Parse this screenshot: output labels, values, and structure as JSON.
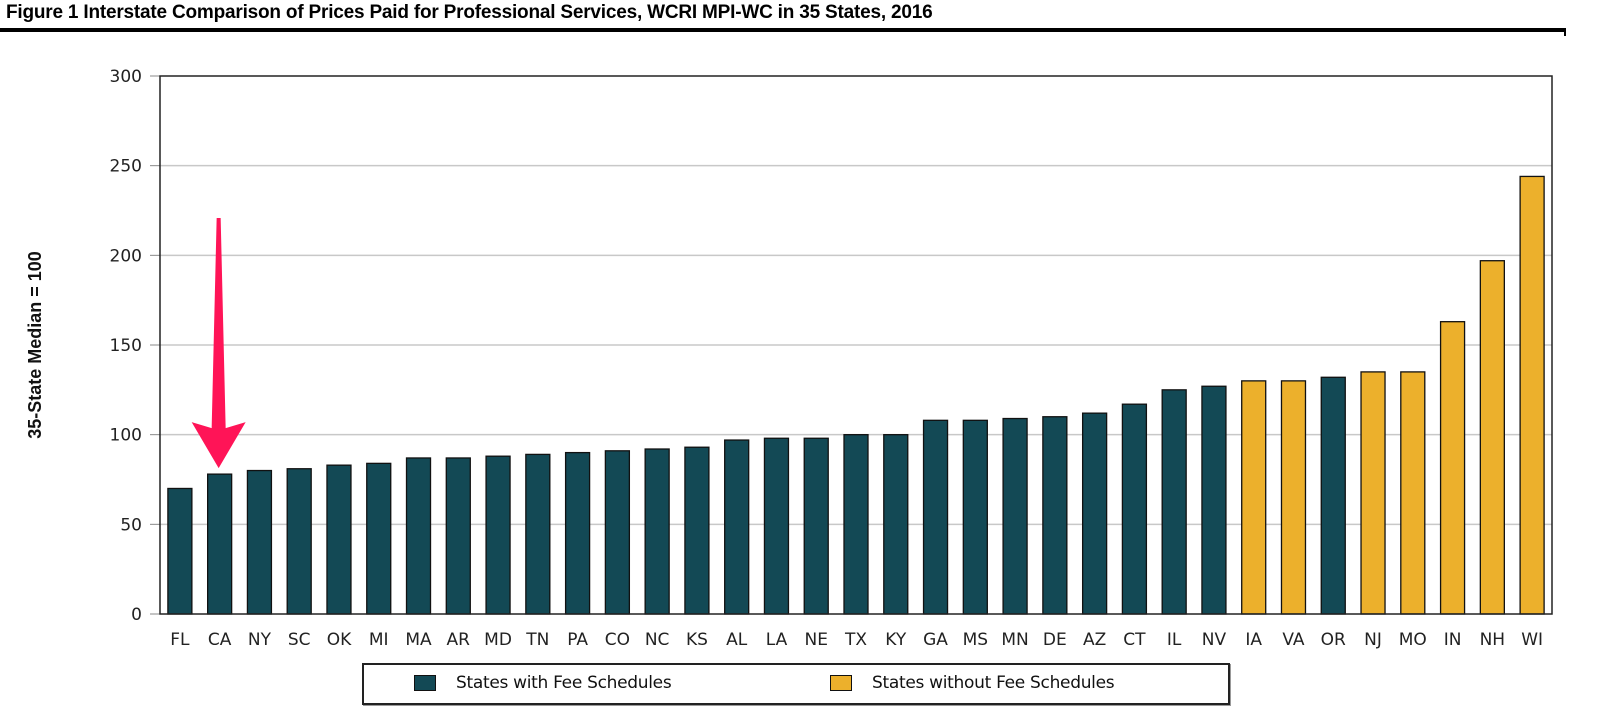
{
  "figure": {
    "title": "Figure 1  Interstate Comparison of Prices Paid for Professional Services, WCRI MPI-WC in 35 States, 2016"
  },
  "colors": {
    "with_fee": "#134955",
    "without_fee": "#ECB02C",
    "arrow": "#FF1457",
    "grid": "#c8c8c8",
    "axis": "#222222"
  },
  "annotation": {
    "type": "arrow",
    "points_to": "CA",
    "color": "#FF1457"
  },
  "chart_data": {
    "type": "bar",
    "title": "Interstate Comparison of Prices Paid for Professional Services, WCRI MPI-WC in 35 States, 2016",
    "xlabel": "",
    "ylabel": "35-State Median = 100",
    "ylim": [
      0,
      300
    ],
    "yticks": [
      0,
      50,
      100,
      150,
      200,
      250,
      300
    ],
    "grid": true,
    "legend_position": "bottom-center",
    "categories": [
      "FL",
      "CA",
      "NY",
      "SC",
      "OK",
      "MI",
      "MA",
      "AR",
      "MD",
      "TN",
      "PA",
      "CO",
      "NC",
      "KS",
      "AL",
      "LA",
      "NE",
      "TX",
      "KY",
      "GA",
      "MS",
      "MN",
      "DE",
      "AZ",
      "CT",
      "IL",
      "NV",
      "IA",
      "VA",
      "OR",
      "NJ",
      "MO",
      "IN",
      "NH",
      "WI"
    ],
    "values": [
      70,
      78,
      80,
      81,
      83,
      84,
      87,
      87,
      88,
      89,
      90,
      91,
      92,
      93,
      97,
      98,
      98,
      100,
      100,
      108,
      108,
      109,
      110,
      112,
      117,
      125,
      127,
      130,
      130,
      132,
      135,
      135,
      163,
      197,
      244
    ],
    "groups": [
      "with",
      "with",
      "with",
      "with",
      "with",
      "with",
      "with",
      "with",
      "with",
      "with",
      "with",
      "with",
      "with",
      "with",
      "with",
      "with",
      "with",
      "with",
      "with",
      "with",
      "with",
      "with",
      "with",
      "with",
      "with",
      "with",
      "with",
      "without",
      "without",
      "with",
      "without",
      "without",
      "without",
      "without",
      "without"
    ],
    "series": [
      {
        "name": "States with Fee Schedules",
        "key": "with",
        "color": "#134955"
      },
      {
        "name": "States without Fee Schedules",
        "key": "without",
        "color": "#ECB02C"
      }
    ]
  },
  "legend": {
    "items": [
      {
        "label": "States with Fee Schedules",
        "color": "#134955"
      },
      {
        "label": "States without Fee Schedules",
        "color": "#ECB02C"
      }
    ]
  }
}
